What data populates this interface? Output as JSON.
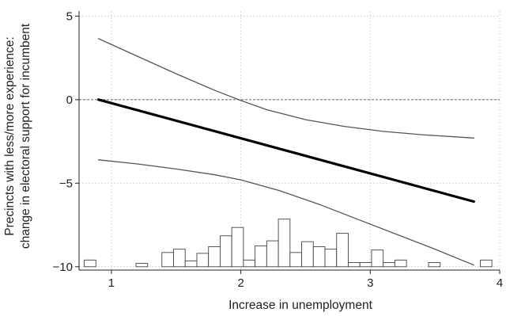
{
  "chart_data": {
    "type": "line",
    "xlabel": "Increase in unemployment",
    "ylabel_lines": [
      "Precincts with less/more experience:",
      "change in electoral support for incumbent"
    ],
    "xlim": [
      0.75,
      4.0
    ],
    "ylim": [
      -10.2,
      5.3
    ],
    "x_ticks": [
      1,
      2,
      3,
      4
    ],
    "y_ticks": [
      5,
      0,
      -5,
      -10
    ],
    "grid": true,
    "reference_line_y": 0,
    "series": [
      {
        "role": "estimate",
        "x": [
          0.9,
          3.8
        ],
        "y": [
          0.0,
          -6.1
        ]
      },
      {
        "role": "upper-ci",
        "x": [
          0.9,
          1.2,
          1.5,
          1.8,
          2.0,
          2.2,
          2.5,
          2.8,
          3.1,
          3.4,
          3.8
        ],
        "y": [
          3.65,
          2.6,
          1.55,
          0.55,
          -0.05,
          -0.6,
          -1.2,
          -1.6,
          -1.9,
          -2.1,
          -2.3
        ]
      },
      {
        "role": "lower-ci",
        "x": [
          0.9,
          1.2,
          1.5,
          1.8,
          2.0,
          2.3,
          2.6,
          2.9,
          3.2,
          3.5,
          3.8
        ],
        "y": [
          -3.6,
          -3.85,
          -4.15,
          -4.5,
          -4.8,
          -5.45,
          -6.25,
          -7.15,
          -8.05,
          -8.95,
          -9.9
        ]
      }
    ],
    "histogram": {
      "baseline": -10,
      "bin_width": 0.09,
      "bins": [
        {
          "x": 0.79,
          "top": -9.6
        },
        {
          "x": 1.19,
          "top": -9.8
        },
        {
          "x": 1.39,
          "top": -9.15
        },
        {
          "x": 1.48,
          "top": -8.95
        },
        {
          "x": 1.57,
          "top": -9.65
        },
        {
          "x": 1.66,
          "top": -9.2
        },
        {
          "x": 1.75,
          "top": -8.8
        },
        {
          "x": 1.84,
          "top": -8.15
        },
        {
          "x": 1.93,
          "top": -7.65
        },
        {
          "x": 2.02,
          "top": -9.6
        },
        {
          "x": 2.11,
          "top": -8.75
        },
        {
          "x": 2.2,
          "top": -8.45
        },
        {
          "x": 2.29,
          "top": -7.15
        },
        {
          "x": 2.38,
          "top": -9.15
        },
        {
          "x": 2.47,
          "top": -8.5
        },
        {
          "x": 2.56,
          "top": -8.8
        },
        {
          "x": 2.65,
          "top": -8.95
        },
        {
          "x": 2.74,
          "top": -8.0
        },
        {
          "x": 2.83,
          "top": -9.75
        },
        {
          "x": 2.92,
          "top": -9.75
        },
        {
          "x": 3.01,
          "top": -9.0
        },
        {
          "x": 3.1,
          "top": -9.75
        },
        {
          "x": 3.19,
          "top": -9.6
        },
        {
          "x": 3.45,
          "top": -9.75
        },
        {
          "x": 3.85,
          "top": -9.6
        }
      ]
    }
  }
}
